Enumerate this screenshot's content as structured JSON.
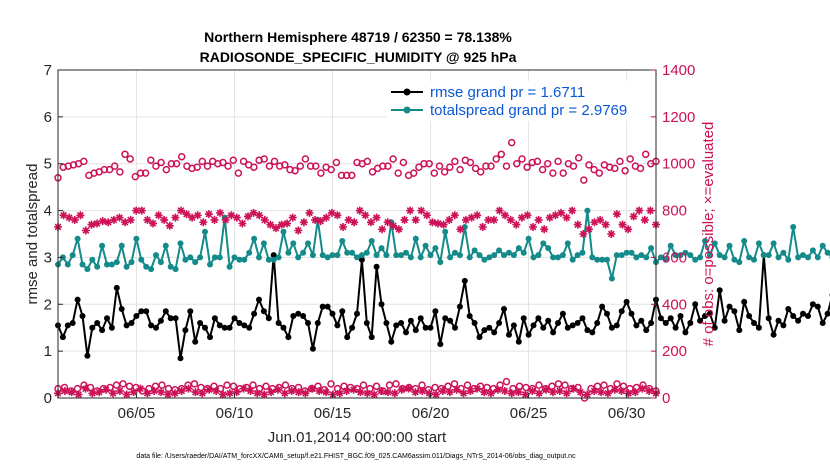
{
  "chart_data": {
    "type": "line",
    "title": "Northern Hemisphere 48719 / 62350 = 78.138%",
    "subtitle": "RADIOSONDE_SPECIFIC_HUMIDITY @ 925 hPa",
    "ylabel": "rmse and totalspread",
    "ylabel_right": "# of obs: o=possible; ×=evaluated",
    "xlabel": "Jun.01,2014 00:00:00 start",
    "footer": "data file: /Users/raeder/DAI/ATM_forcXX/CAM6_setup/f.e21.FHIST_BGC.f09_025.CAM6assim.011/Diags_NTrS_2014-06/obs_diag_output.nc",
    "ylim": [
      0,
      7
    ],
    "ylim_right": [
      0,
      1400
    ],
    "xlim": [
      1,
      31.5
    ],
    "yticks": [
      "0",
      "1",
      "2",
      "3",
      "4",
      "5",
      "6",
      "7"
    ],
    "yticks_right": [
      "0",
      "200",
      "400",
      "600",
      "800",
      "1000",
      "1200",
      "1400"
    ],
    "xticks": [
      {
        "x": 5,
        "label": "06/05"
      },
      {
        "x": 10,
        "label": "06/10"
      },
      {
        "x": 15,
        "label": "06/15"
      },
      {
        "x": 20,
        "label": "06/20"
      },
      {
        "x": 25,
        "label": "06/25"
      },
      {
        "x": 30,
        "label": "06/30"
      }
    ],
    "grid": true,
    "legend_position": "top-right",
    "x_start": 1.0,
    "x_step": 0.25,
    "series": [
      {
        "name": "rmse grand pr = 1.6711",
        "color": "#000000",
        "axis": "left",
        "values": [
          1.55,
          1.3,
          1.55,
          1.6,
          2.1,
          1.75,
          0.9,
          1.5,
          1.6,
          1.45,
          1.7,
          1.5,
          2.35,
          1.9,
          1.55,
          1.6,
          1.75,
          1.85,
          1.85,
          1.55,
          1.5,
          1.65,
          1.85,
          1.7,
          1.7,
          0.85,
          1.45,
          1.85,
          1.2,
          1.6,
          1.5,
          1.3,
          1.7,
          1.55,
          1.5,
          1.5,
          1.7,
          1.6,
          1.55,
          1.5,
          1.8,
          2.1,
          1.85,
          1.7,
          3.05,
          1.6,
          1.5,
          1.3,
          1.75,
          1.8,
          1.75,
          1.6,
          1.05,
          1.6,
          1.95,
          1.95,
          1.8,
          1.55,
          1.85,
          1.3,
          1.5,
          1.8,
          2.95,
          1.6,
          1.3,
          2.8,
          2.0,
          1.6,
          1.2,
          1.55,
          1.6,
          1.4,
          1.65,
          1.45,
          1.7,
          1.5,
          1.5,
          1.85,
          1.15,
          1.7,
          1.65,
          1.5,
          1.95,
          2.5,
          1.75,
          1.6,
          1.3,
          1.45,
          1.5,
          1.4,
          1.6,
          1.9,
          1.35,
          1.55,
          1.2,
          1.7,
          1.35,
          1.55,
          1.7,
          1.5,
          1.65,
          1.4,
          1.6,
          1.8,
          1.5,
          1.55,
          1.6,
          1.7,
          1.45,
          1.4,
          1.6,
          1.95,
          1.8,
          1.5,
          1.55,
          1.85,
          2.05,
          1.8,
          1.55,
          1.65,
          1.45,
          1.6,
          2.1,
          1.7,
          1.6,
          1.7,
          1.5,
          1.75,
          1.4,
          1.6,
          2.0,
          1.65,
          1.75,
          1.8,
          1.5,
          2.3,
          1.65,
          1.95,
          1.85,
          1.45,
          2.05,
          1.75,
          1.6,
          1.5,
          3.05,
          1.7,
          1.35,
          1.65,
          1.55,
          1.9,
          1.75,
          1.65,
          1.8,
          1.75,
          2.0,
          1.95,
          1.6,
          1.8,
          2.2,
          1.75,
          1.85,
          3.2,
          1.9,
          1.85,
          1.95,
          2.0,
          2.0,
          2.65
        ]
      },
      {
        "name": "totalspread grand pr = 2.9769",
        "color": "#148a8a",
        "axis": "left",
        "values": [
          2.85,
          3.0,
          2.85,
          3.05,
          3.4,
          2.85,
          2.75,
          2.95,
          2.8,
          3.25,
          2.85,
          2.85,
          2.9,
          3.25,
          2.8,
          2.9,
          3.4,
          2.95,
          2.8,
          2.75,
          3.05,
          2.9,
          3.25,
          2.8,
          2.75,
          3.3,
          2.95,
          3.0,
          2.9,
          3.0,
          3.55,
          2.85,
          3.0,
          3.0,
          3.85,
          2.8,
          3.0,
          2.95,
          2.95,
          3.1,
          3.4,
          3.0,
          3.3,
          2.95,
          2.95,
          3.0,
          3.55,
          3.1,
          3.3,
          3.0,
          3.1,
          3.3,
          3.05,
          3.8,
          3.05,
          3.0,
          3.05,
          3.05,
          3.35,
          3.1,
          3.1,
          3.0,
          3.05,
          3.1,
          3.35,
          3.05,
          3.2,
          3.05,
          3.75,
          3.05,
          3.05,
          3.1,
          3.0,
          3.4,
          3.0,
          3.25,
          3.05,
          3.2,
          2.9,
          3.55,
          3.0,
          3.1,
          3.05,
          3.65,
          3.0,
          3.15,
          3.05,
          2.95,
          3.0,
          3.05,
          3.15,
          3.05,
          3.1,
          3.05,
          3.2,
          3.1,
          3.4,
          3.0,
          3.05,
          3.3,
          3.2,
          3.0,
          3.0,
          3.05,
          3.3,
          2.95,
          3.05,
          3.1,
          4.0,
          3.0,
          2.95,
          2.95,
          2.95,
          2.55,
          3.05,
          3.05,
          3.1,
          3.1,
          3.0,
          3.05,
          3.0,
          3.2,
          2.9,
          3.0,
          2.95,
          3.25,
          3.05,
          3.05,
          3.1,
          3.05,
          2.95,
          3.0,
          3.35,
          3.05,
          3.3,
          3.05,
          3.0,
          3.25,
          2.95,
          2.9,
          3.35,
          3.0,
          2.95,
          3.3,
          3.05,
          3.05,
          3.3,
          3.0,
          3.1,
          2.95,
          3.65,
          3.0,
          3.05,
          3.0,
          3.15,
          3.0,
          3.25,
          3.1,
          3.0,
          3.05,
          3.1,
          3.0,
          3.05,
          3.0,
          3.1,
          3.25,
          3.2,
          3.05,
          2.9,
          3.35,
          3.05,
          3.05,
          3.4,
          3.3
        ]
      },
      {
        "name": "obs possible",
        "color": "#cc1157",
        "axis": "right",
        "marker": "circle",
        "values": [
          940,
          985,
          990,
          995,
          1000,
          1010,
          950,
          960,
          965,
          975,
          975,
          990,
          965,
          1040,
          1020,
          945,
          960,
          960,
          1015,
          990,
          1005,
          975,
          1000,
          1000,
          1030,
          990,
          980,
          985,
          1010,
          990,
          1010,
          1000,
          1005,
          990,
          1015,
          960,
          1010,
          995,
          985,
          1015,
          1020,
          990,
          1010,
          990,
          995,
          975,
          970,
          990,
          1020,
          990,
          990,
          960,
          985,
          975,
          1005,
          950,
          950,
          950,
          1005,
          1000,
          1010,
          965,
          980,
          990,
          990,
          1020,
          960,
          1005,
          950,
          960,
          985,
          1000,
          1000,
          960,
          990,
          965,
          985,
          1010,
          975,
          1015,
          1005,
          980,
          965,
          990,
          990,
          1020,
          1040,
          990,
          1090,
          1000,
          1020,
          985,
          1005,
          1010,
          975,
          1000,
          960,
          1010,
          960,
          1000,
          990,
          1025,
          930,
          995,
          975,
          960,
          995,
          985,
          980,
          1010,
          970,
          1020,
          990,
          980,
          1040,
          1000,
          1010
        ]
      },
      {
        "name": "obs evaluated",
        "color": "#cc1157",
        "axis": "right",
        "marker": "star",
        "values": [
          730,
          780,
          770,
          760,
          780,
          715,
          740,
          745,
          755,
          750,
          760,
          770,
          750,
          760,
          800,
          800,
          760,
          745,
          780,
          760,
          735,
          770,
          800,
          785,
          770,
          780,
          750,
          785,
          760,
          790,
          760,
          780,
          770,
          745,
          775,
          790,
          780,
          760,
          740,
          725,
          740,
          745,
          770,
          715,
          750,
          790,
          760,
          755,
          770,
          790,
          780,
          730,
          760,
          750,
          800,
          780,
          750,
          770,
          720,
          750,
          735,
          720,
          760,
          800,
          760,
          800,
          780,
          750,
          745,
          740,
          760,
          780,
          720,
          760,
          770,
          780,
          730,
          760,
          760,
          800,
          780,
          760,
          740,
          770,
          780,
          730,
          760,
          720,
          770,
          780,
          790,
          770,
          800,
          740,
          700,
          720,
          750,
          760,
          740,
          700,
          785,
          740,
          720,
          775,
          800,
          760,
          800,
          740
        ]
      },
      {
        "name": "obs low possible",
        "color": "#cc1157",
        "axis": "right",
        "marker": "circle",
        "values": [
          40,
          45,
          30,
          40,
          55,
          45,
          30,
          40,
          45,
          55,
          60,
          50,
          45,
          30,
          40,
          50,
          55,
          40,
          35,
          40,
          55,
          60,
          45,
          40,
          50,
          40,
          55,
          50,
          40,
          45,
          55,
          40,
          50,
          40,
          45,
          55,
          40,
          45,
          30,
          40,
          50,
          35,
          60,
          40,
          50,
          45,
          40,
          55,
          40,
          50,
          30,
          55,
          60,
          40,
          45,
          40,
          55,
          35,
          45,
          40,
          50,
          60,
          40,
          55,
          40,
          50,
          45,
          40,
          55,
          70,
          40,
          50,
          45,
          40,
          55,
          40,
          50,
          60,
          55,
          40,
          45,
          0,
          40,
          50,
          55,
          40,
          60,
          50,
          40,
          45,
          55,
          40,
          30
        ]
      },
      {
        "name": "obs low evaluated",
        "color": "#cc1157",
        "axis": "right",
        "marker": "star",
        "values": [
          20,
          30,
          25,
          15,
          40,
          20,
          25,
          35,
          20,
          30,
          15,
          25,
          40,
          20,
          30,
          25,
          15,
          20,
          30,
          40,
          25,
          20,
          35,
          30,
          15,
          20,
          25,
          40,
          30,
          20,
          15,
          25,
          35,
          20,
          30,
          25,
          20,
          40,
          30,
          25,
          15,
          20,
          30,
          35,
          25,
          20,
          15,
          30,
          25,
          20,
          35,
          40,
          25,
          30,
          20,
          15,
          30,
          25,
          35,
          20,
          30,
          40,
          25,
          20,
          35,
          30,
          20,
          25,
          15,
          30,
          20,
          35,
          25,
          30,
          20,
          40,
          25,
          15,
          30,
          25,
          20,
          35,
          30,
          20,
          25,
          40,
          30,
          20
        ]
      }
    ]
  }
}
